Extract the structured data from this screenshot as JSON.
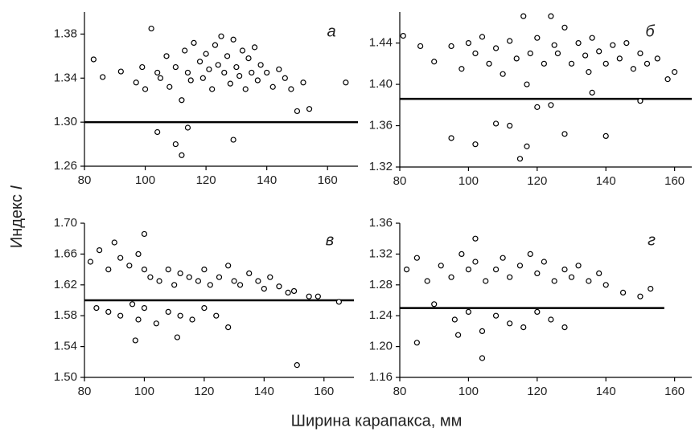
{
  "x_label": "Ширина карапакса, мм",
  "y_label": "Индекс",
  "y_label_symbol": "I",
  "chart_data": [
    {
      "type": "scatter",
      "panel_label": "а",
      "x": [
        83,
        86,
        92,
        97,
        99,
        100,
        102,
        104,
        105,
        107,
        108,
        110,
        112,
        113,
        114,
        115,
        116,
        118,
        119,
        120,
        121,
        122,
        123,
        124,
        125,
        126,
        127,
        128,
        129,
        130,
        131,
        132,
        133,
        134,
        135,
        136,
        137,
        138,
        140,
        142,
        144,
        146,
        148,
        150,
        152,
        154,
        166,
        112,
        114,
        129,
        104,
        110
      ],
      "values": [
        1.357,
        1.341,
        1.346,
        1.336,
        1.35,
        1.33,
        1.385,
        1.345,
        1.34,
        1.36,
        1.332,
        1.35,
        1.32,
        1.365,
        1.345,
        1.338,
        1.372,
        1.355,
        1.34,
        1.362,
        1.348,
        1.33,
        1.37,
        1.352,
        1.378,
        1.345,
        1.36,
        1.335,
        1.375,
        1.35,
        1.342,
        1.365,
        1.33,
        1.358,
        1.345,
        1.368,
        1.338,
        1.352,
        1.345,
        1.332,
        1.348,
        1.34,
        1.33,
        1.31,
        1.336,
        1.312,
        1.336,
        1.27,
        1.295,
        1.284,
        1.291,
        1.28
      ],
      "reference_line": {
        "y": 1.3,
        "x": [
          80,
          170
        ]
      },
      "xlim": [
        80,
        170
      ],
      "xticks": [
        80,
        100,
        120,
        140,
        160
      ],
      "ylim": [
        1.26,
        1.4
      ],
      "yticks": [
        {
          "value": 1.26,
          "label": "1.26"
        },
        {
          "value": 1.3,
          "label": "1.30"
        },
        1.34,
        1.38
      ]
    },
    {
      "type": "scatter",
      "panel_label": "б",
      "x": [
        81,
        86,
        90,
        95,
        98,
        100,
        102,
        104,
        106,
        108,
        110,
        112,
        114,
        116,
        117,
        118,
        120,
        122,
        124,
        125,
        126,
        128,
        130,
        132,
        134,
        135,
        136,
        138,
        140,
        142,
        144,
        146,
        148,
        150,
        152,
        155,
        158,
        160,
        95,
        102,
        108,
        112,
        115,
        117,
        120,
        124,
        128,
        136,
        140,
        150
      ],
      "values": [
        1.447,
        1.437,
        1.422,
        1.437,
        1.415,
        1.44,
        1.43,
        1.446,
        1.42,
        1.435,
        1.41,
        1.442,
        1.425,
        1.466,
        1.4,
        1.43,
        1.445,
        1.42,
        1.466,
        1.438,
        1.43,
        1.455,
        1.42,
        1.44,
        1.428,
        1.412,
        1.445,
        1.432,
        1.42,
        1.438,
        1.425,
        1.44,
        1.415,
        1.43,
        1.42,
        1.425,
        1.405,
        1.412,
        1.348,
        1.342,
        1.362,
        1.36,
        1.328,
        1.34,
        1.378,
        1.38,
        1.352,
        1.392,
        1.35,
        1.384
      ],
      "reference_line": {
        "y": 1.386,
        "x": [
          80,
          165
        ]
      },
      "xlim": [
        80,
        165
      ],
      "xticks": [
        80,
        100,
        120,
        140,
        160
      ],
      "ylim": [
        1.32,
        1.47
      ],
      "yticks": [
        1.32,
        1.36,
        {
          "value": 1.4,
          "label": "1.40"
        },
        1.44
      ]
    },
    {
      "type": "scatter",
      "panel_label": "в",
      "x": [
        82,
        85,
        88,
        90,
        92,
        95,
        98,
        100,
        102,
        105,
        108,
        110,
        112,
        115,
        118,
        120,
        122,
        125,
        128,
        130,
        132,
        135,
        138,
        140,
        142,
        145,
        148,
        150,
        155,
        158,
        165,
        84,
        88,
        92,
        96,
        98,
        100,
        104,
        108,
        112,
        116,
        120,
        124,
        128,
        97,
        111,
        151,
        100
      ],
      "values": [
        1.65,
        1.665,
        1.64,
        1.675,
        1.655,
        1.645,
        1.66,
        1.64,
        1.63,
        1.625,
        1.64,
        1.62,
        1.635,
        1.63,
        1.625,
        1.64,
        1.62,
        1.63,
        1.645,
        1.625,
        1.62,
        1.635,
        1.625,
        1.615,
        1.63,
        1.618,
        1.61,
        1.612,
        1.605,
        1.605,
        1.598,
        1.59,
        1.585,
        1.58,
        1.595,
        1.575,
        1.59,
        1.57,
        1.585,
        1.58,
        1.575,
        1.59,
        1.58,
        1.565,
        1.548,
        1.552,
        1.516,
        1.686
      ],
      "reference_line": {
        "y": 1.6,
        "x": [
          80,
          170
        ]
      },
      "xlim": [
        80,
        170
      ],
      "xticks": [
        80,
        100,
        120,
        140,
        160
      ],
      "ylim": [
        1.5,
        1.7
      ],
      "yticks": [
        {
          "value": 1.5,
          "label": "1.50"
        },
        1.54,
        1.58,
        1.62,
        1.66,
        {
          "value": 1.7,
          "label": "1.70"
        }
      ]
    },
    {
      "type": "scatter",
      "panel_label": "г",
      "x": [
        82,
        85,
        88,
        92,
        95,
        98,
        100,
        102,
        105,
        108,
        110,
        112,
        115,
        118,
        120,
        122,
        125,
        128,
        130,
        132,
        135,
        138,
        140,
        145,
        150,
        153,
        90,
        96,
        100,
        104,
        108,
        112,
        116,
        120,
        124,
        128,
        102,
        104,
        85,
        97
      ],
      "values": [
        1.3,
        1.315,
        1.285,
        1.305,
        1.29,
        1.32,
        1.3,
        1.31,
        1.285,
        1.3,
        1.315,
        1.29,
        1.305,
        1.32,
        1.295,
        1.31,
        1.285,
        1.3,
        1.29,
        1.305,
        1.285,
        1.295,
        1.28,
        1.27,
        1.265,
        1.275,
        1.255,
        1.235,
        1.245,
        1.22,
        1.24,
        1.23,
        1.225,
        1.245,
        1.235,
        1.225,
        1.34,
        1.185,
        1.205,
        1.215
      ],
      "reference_line": {
        "y": 1.25,
        "x": [
          80,
          157
        ]
      },
      "xlim": [
        80,
        165
      ],
      "xticks": [
        80,
        100,
        120,
        140,
        160
      ],
      "ylim": [
        1.16,
        1.36
      ],
      "yticks": [
        1.16,
        {
          "value": 1.2,
          "label": "1.20"
        },
        1.24,
        1.28,
        1.32,
        1.36
      ]
    }
  ]
}
